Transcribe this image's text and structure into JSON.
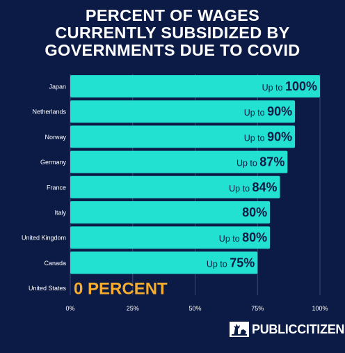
{
  "title_lines": [
    "PERCENT OF WAGES",
    "CURRENTLY SUBSIDIZED BY",
    "GOVERNMENTS DUE TO COVID"
  ],
  "chart_data": {
    "type": "bar",
    "orientation": "horizontal",
    "categories": [
      "Japan",
      "Netherlands",
      "Norway",
      "Germany",
      "France",
      "Italy",
      "United Kingdom",
      "Canada",
      "United States"
    ],
    "values": [
      100,
      90,
      90,
      87,
      84,
      80,
      80,
      75,
      0
    ],
    "label_prefixes": [
      "Up to",
      "Up to",
      "Up to",
      "Up to",
      "Up to",
      "",
      "Up to",
      "Up to",
      ""
    ],
    "label_values": [
      "100%",
      "90%",
      "90%",
      "87%",
      "84%",
      "80%",
      "80%",
      "75%",
      "0 PERCENT"
    ],
    "xlim": [
      0,
      100
    ],
    "x_ticks": [
      "0%",
      "25%",
      "50%",
      "75%",
      "100%"
    ],
    "grid": true,
    "colors": {
      "bar": "#22e1d0",
      "background": "#0c1a46",
      "zero_label": "#f6ad2e",
      "bar_text": "#0c1a46",
      "grid": "#3b4a78"
    }
  },
  "logo": {
    "text": "PUBLICCITIZEN"
  }
}
